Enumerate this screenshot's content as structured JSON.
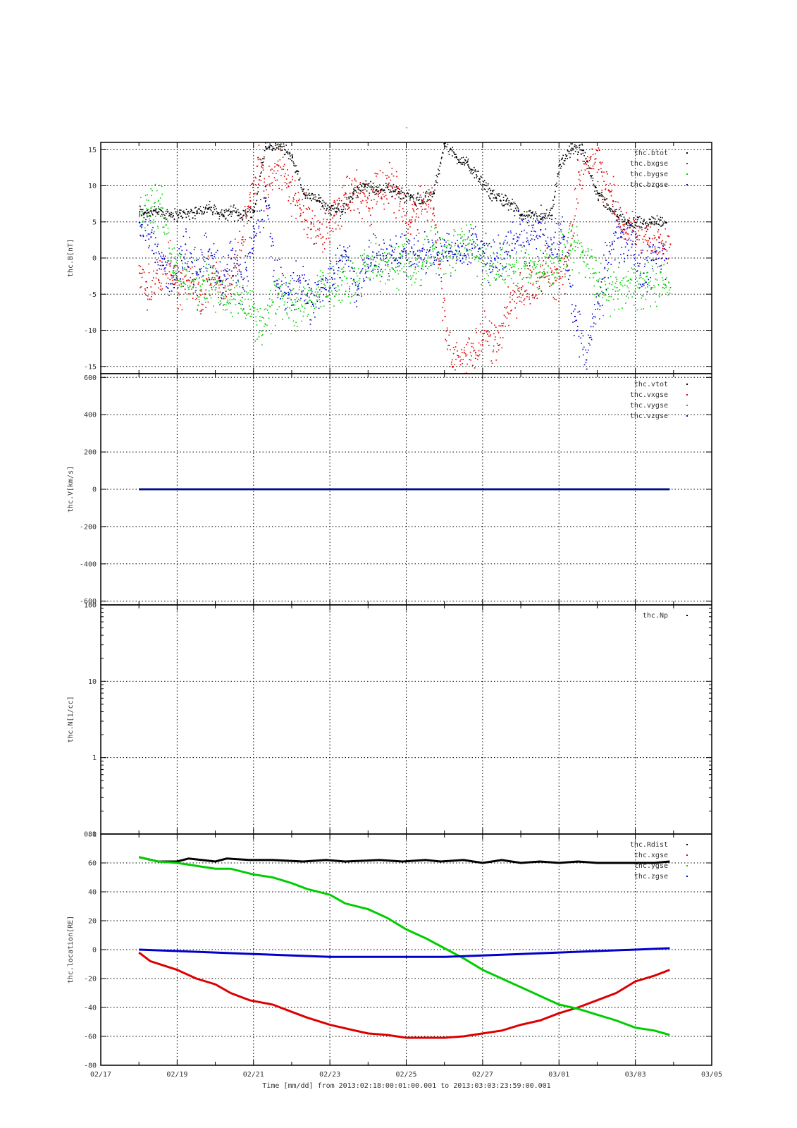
{
  "page": {
    "title_mark": "-",
    "footer": "Time [mm/dd]  from 2013:02:18:00:01:00.001  to  2013:03:03:23:59:00.001"
  },
  "chart_data": [
    {
      "type": "scatter",
      "ylabel": "thc.B[nT]",
      "ylim": [
        -16,
        16
      ],
      "yticks": [
        -15,
        -10,
        -5,
        0,
        5,
        10,
        15
      ],
      "ytick_labels": [
        "-15",
        "-10",
        "-5",
        "0",
        "5",
        "10",
        "15"
      ],
      "xlim_days": [
        0,
        16
      ],
      "grid": true,
      "legend_position": "top-right",
      "series": [
        {
          "name": "thc.btot",
          "color": "#000000",
          "x": [
            1,
            1.5,
            2,
            2.5,
            2.8,
            3.2,
            3.4,
            3.6,
            4,
            4.3,
            4.7,
            5,
            5.3,
            5.7,
            6,
            6.3,
            6.6,
            6.9,
            7.2,
            7.5,
            7.8,
            8.1,
            8.4,
            8.7,
            9,
            9.3,
            9.6,
            9.9,
            10.2,
            10.6,
            11,
            11.2,
            11.5,
            11.8,
            12,
            12.3,
            12.6,
            13,
            13.4,
            13.8,
            14,
            14.4,
            14.8
          ],
          "y": [
            6.5,
            6.5,
            6,
            6.5,
            7,
            6,
            6.5,
            6,
            6.5,
            15.5,
            15.5,
            14,
            9,
            8,
            7,
            6.5,
            9,
            10,
            9.5,
            10,
            9,
            8.5,
            8,
            9,
            16,
            14,
            13,
            11,
            9,
            8,
            6,
            6,
            5.5,
            6,
            13,
            15,
            15,
            9,
            6.5,
            5,
            5,
            5,
            5
          ]
        },
        {
          "name": "thc.bxgse",
          "color": "#dd0000",
          "x": [
            1,
            1.2,
            1.5,
            1.8,
            2,
            2.3,
            2.6,
            2.9,
            3.2,
            3.5,
            3.7,
            3.9,
            4.1,
            4.3,
            4.6,
            4.9,
            5.2,
            5.5,
            5.8,
            6.1,
            6.4,
            6.7,
            7,
            7.2,
            7.5,
            7.8,
            8.1,
            8.4,
            8.7,
            9,
            9.2,
            9.5,
            9.8,
            10.1,
            10.4,
            10.7,
            11,
            11.3,
            11.6,
            11.9,
            12.2,
            12.5,
            12.8,
            13.1,
            13.4,
            13.7,
            14,
            14.3,
            14.6,
            14.9
          ],
          "y": [
            -2,
            -4,
            -3,
            -1,
            -4,
            -3,
            -5,
            -2,
            -4,
            -1,
            3,
            8,
            14,
            10,
            13,
            10,
            7,
            5,
            3,
            6,
            9,
            10,
            7,
            9,
            10,
            9,
            5,
            8,
            7,
            -8,
            -15,
            -13,
            -13,
            -10,
            -12,
            -6,
            -4,
            -5,
            -2,
            -3,
            -1,
            12,
            14,
            12,
            8,
            4,
            3,
            2,
            3,
            2
          ]
        },
        {
          "name": "thc.bygse",
          "color": "#00cc00",
          "x": [
            1,
            1.3,
            1.6,
            1.9,
            2.1,
            2.4,
            2.7,
            3,
            3.3,
            3.6,
            3.9,
            4.2,
            4.5,
            4.8,
            5.1,
            5.4,
            5.7,
            6,
            6.3,
            6.6,
            6.9,
            7.2,
            7.5,
            7.8,
            8.1,
            8.4,
            8.7,
            9,
            9.3,
            9.6,
            9.9,
            10.2,
            10.5,
            10.8,
            11.1,
            11.4,
            11.7,
            12,
            12.3,
            12.6,
            12.9,
            13.2,
            13.5,
            13.8,
            14.1,
            14.4,
            14.7,
            14.9
          ],
          "y": [
            6,
            7,
            7,
            -1,
            -2,
            -4,
            -3,
            -4,
            -6,
            -5,
            -7,
            -10,
            -6,
            -5,
            -7,
            -6,
            -5,
            -4,
            -3,
            -3,
            -1,
            -1,
            -1,
            -1,
            -1,
            -1,
            2,
            1,
            1,
            2,
            0,
            -1,
            -1,
            -2,
            -1,
            -2,
            -1,
            0,
            2,
            1,
            -2,
            -5,
            -4,
            -3,
            -4,
            -4,
            -4,
            -4
          ]
        },
        {
          "name": "thc.bzgse",
          "color": "#0000cc",
          "x": [
            1,
            1.3,
            1.6,
            1.9,
            2.2,
            2.5,
            2.8,
            3.1,
            3.4,
            3.7,
            4,
            4.3,
            4.6,
            4.9,
            5.2,
            5.5,
            5.8,
            6.1,
            6.4,
            6.7,
            7,
            7.3,
            7.6,
            7.9,
            8.2,
            8.5,
            8.8,
            9.1,
            9.4,
            9.7,
            10,
            10.3,
            10.6,
            10.9,
            11.2,
            11.5,
            11.8,
            12.1,
            12.4,
            12.7,
            13,
            13.3,
            13.6,
            13.9,
            14.2,
            14.5,
            14.8
          ],
          "y": [
            5,
            3,
            0,
            -4,
            2,
            -2,
            1,
            -3,
            0,
            -4,
            3,
            8,
            -3,
            -5,
            -3,
            -6,
            -4,
            -2,
            1,
            -5,
            0,
            0.5,
            0.5,
            1,
            0.5,
            0.5,
            0.5,
            1,
            0.5,
            2,
            1,
            0,
            1,
            3,
            2,
            4,
            2,
            3,
            -8,
            -14,
            -6,
            1,
            3,
            2,
            -2,
            1,
            0
          ]
        }
      ]
    },
    {
      "type": "scatter",
      "ylabel": "thc.V[km/s]",
      "ylim": [
        -620,
        620
      ],
      "yticks": [
        -600,
        -400,
        -200,
        0,
        200,
        400,
        600
      ],
      "ytick_labels": [
        "-600",
        "-400",
        "-200",
        "0",
        "200",
        "400",
        "600"
      ],
      "xlim_days": [
        0,
        16
      ],
      "grid": true,
      "legend_position": "top-right",
      "series": [
        {
          "name": "thc.vtot",
          "color": "#000000",
          "x": [
            1,
            14.9
          ],
          "y": [
            0,
            0
          ]
        },
        {
          "name": "thc.vxgse",
          "color": "#dd0000",
          "x": [
            1,
            14.9
          ],
          "y": [
            0,
            0
          ]
        },
        {
          "name": "thc.vygse",
          "color": "#00cc00",
          "x": [
            1,
            14.9
          ],
          "y": [
            0,
            0
          ]
        },
        {
          "name": "thc.vzgse",
          "color": "#0000cc",
          "x": [
            1,
            14.9
          ],
          "y": [
            0,
            0
          ]
        }
      ]
    },
    {
      "type": "scatter",
      "ylabel": "thc.N[1/cc]",
      "log_scale": true,
      "ylim": [
        0.1,
        100
      ],
      "yticks": [
        0.1,
        1,
        10,
        100
      ],
      "ytick_labels": [
        "0.1",
        "1",
        "10",
        "100"
      ],
      "xlim_days": [
        0,
        16
      ],
      "grid": true,
      "legend_position": "top-right",
      "series": [
        {
          "name": "thc.Np",
          "color": "#000000",
          "x": [],
          "y": []
        }
      ]
    },
    {
      "type": "line",
      "ylabel": "thc.location[RE]",
      "ylim": [
        -80,
        80
      ],
      "yticks": [
        -80,
        -60,
        -40,
        -20,
        0,
        20,
        40,
        60,
        80
      ],
      "ytick_labels": [
        "-80",
        "-60",
        "-40",
        "-20",
        "0",
        "20",
        "40",
        "60",
        "80"
      ],
      "xlim_days": [
        0,
        16
      ],
      "xticks": [
        0,
        2,
        4,
        6,
        8,
        10,
        12,
        14,
        16
      ],
      "xtick_labels": [
        "02/17",
        "02/19",
        "02/21",
        "02/23",
        "02/25",
        "02/27",
        "03/01",
        "03/03",
        "03/05"
      ],
      "grid": true,
      "legend_position": "top-right",
      "series": [
        {
          "name": "thc.Rdist",
          "color": "#000000",
          "x": [
            1,
            1.5,
            2,
            2.3,
            3,
            3.3,
            3.9,
            4.5,
            5.3,
            5.9,
            6.4,
            7.3,
            7.9,
            8.5,
            8.9,
            9.5,
            10,
            10.5,
            11,
            11.5,
            12,
            12.5,
            13,
            13.5,
            14,
            14.5,
            14.9
          ],
          "y": [
            64,
            61,
            61,
            63,
            61,
            63,
            62,
            62,
            61,
            62,
            61,
            62,
            61,
            62,
            61,
            62,
            60,
            62,
            60,
            61,
            60,
            61,
            60,
            60,
            60,
            60,
            61
          ]
        },
        {
          "name": "thc.xgse",
          "color": "#dd0000",
          "x": [
            1,
            1.3,
            2,
            2.5,
            3,
            3.4,
            3.9,
            4.5,
            5,
            5.4,
            6,
            6.5,
            7,
            7.5,
            8,
            8.5,
            9,
            9.5,
            10,
            10.5,
            11,
            11.5,
            12,
            12.5,
            13,
            13.5,
            14,
            14.5,
            14.9
          ],
          "y": [
            -2,
            -8,
            -14,
            -20,
            -24,
            -30,
            -35,
            -38,
            -43,
            -47,
            -52,
            -55,
            -58,
            -59,
            -61,
            -61,
            -61,
            -60,
            -58,
            -56,
            -52,
            -49,
            -44,
            -40,
            -35,
            -30,
            -22,
            -18,
            -14
          ]
        },
        {
          "name": "thc.ygse",
          "color": "#00cc00",
          "x": [
            1,
            1.5,
            2,
            2.5,
            3,
            3.4,
            4,
            4.5,
            5,
            5.4,
            6,
            6.4,
            7,
            7.5,
            8,
            8.5,
            9,
            9.5,
            10,
            10.5,
            11,
            11.5,
            12,
            12.5,
            13,
            13.5,
            14,
            14.5,
            14.9
          ],
          "y": [
            64,
            61,
            60,
            58,
            56,
            56,
            52,
            50,
            46,
            42,
            38,
            32,
            28,
            22,
            14,
            8,
            1,
            -6,
            -14,
            -20,
            -26,
            -32,
            -38,
            -41,
            -45,
            -49,
            -54,
            -56,
            -59
          ]
        },
        {
          "name": "thc.zgse",
          "color": "#0000cc",
          "x": [
            1,
            2,
            3,
            4,
            5,
            6,
            7,
            8,
            9,
            10,
            11,
            12,
            13,
            14,
            14.9
          ],
          "y": [
            0,
            -1,
            -2,
            -3,
            -4,
            -5,
            -5,
            -5,
            -5,
            -4,
            -3,
            -2,
            -1,
            0,
            1
          ]
        }
      ]
    }
  ]
}
